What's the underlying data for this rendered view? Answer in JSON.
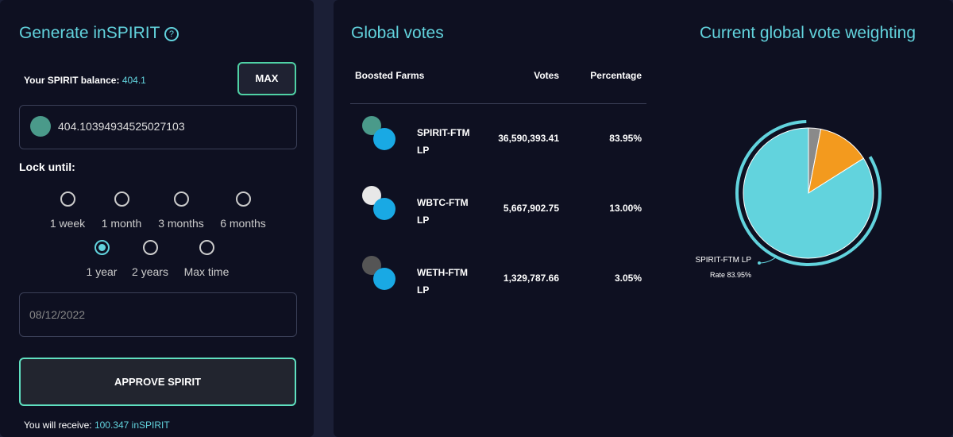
{
  "generate": {
    "title": "Generate inSPIRIT",
    "balance_label": "Your SPIRIT balance:",
    "balance": "404.1",
    "max_button": "MAX",
    "amount": "404.10394934525027103",
    "lock_label": "Lock until:",
    "options": [
      "1 week",
      "1 month",
      "3 months",
      "6 months",
      "1 year",
      "2 years",
      "Max time"
    ],
    "selected": 4,
    "date": "08/12/2022",
    "approve_button": "APPROVE SPIRIT",
    "receive_label": "You will receive:",
    "receive_value": "100.347 inSPIRIT"
  },
  "votes": {
    "title": "Global votes",
    "columns": [
      "Boosted Farms",
      "Votes",
      "Percentage"
    ],
    "rows": [
      [
        "SPIRIT-FTM LP",
        "36,590,393.41",
        "83.95%"
      ],
      [
        "WBTC-FTM LP",
        "5,667,902.75",
        "13.00%"
      ],
      [
        "WETH-FTM LP",
        "1,329,787.66",
        "3.05%"
      ]
    ]
  },
  "chart_data": {
    "type": "pie",
    "title": "Current global vote weighting",
    "categories": [
      "SPIRIT-FTM LP",
      "WBTC-FTM LP",
      "WETH-FTM LP"
    ],
    "values": [
      83.95,
      13.0,
      3.05
    ],
    "colors": [
      "#62d3dd",
      "#f39a1e",
      "#8a8a8a"
    ],
    "tooltip_label": "Rate 83.95%"
  }
}
